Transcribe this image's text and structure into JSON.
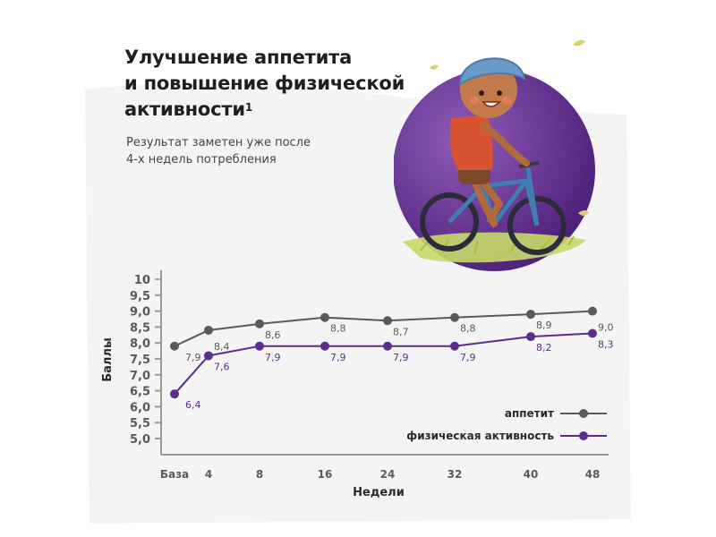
{
  "header": {
    "title_line1": "Улучшение аппетита",
    "title_line2": "и повышение физической",
    "title_line3": "активности",
    "title_sup": "1",
    "subtitle_line1": "Результат заметен уже после",
    "subtitle_line2": "4-х недель потребления"
  },
  "colors": {
    "appetite": "#5a5a5a",
    "activity": "#5b2d8e",
    "axis": "#9a9a9a",
    "circle_inner": "#7d4aa8",
    "circle_outer": "#4b1f78",
    "background_wave": "#f3f3f3"
  },
  "illustration": {
    "name": "child-on-bicycle-icon"
  },
  "chart_data": {
    "type": "line",
    "categories": [
      "База",
      "4",
      "8",
      "16",
      "24",
      "32",
      "40",
      "48"
    ],
    "xlabel": "Недели",
    "ylabel": "Баллы",
    "ylim": [
      5.0,
      10.0
    ],
    "yticks": [
      "10",
      "9,5",
      "9,0",
      "8,5",
      "8,0",
      "7,5",
      "7,0",
      "6,5",
      "6,0",
      "5,5",
      "5,0"
    ],
    "grid": false,
    "legend_position": "bottom-right",
    "series": [
      {
        "name": "аппетит",
        "values": [
          7.9,
          8.4,
          8.6,
          8.8,
          8.7,
          8.8,
          8.9,
          9.0
        ],
        "labels": [
          "7,9",
          "8,4",
          "8,6",
          "8,8",
          "8,7",
          "8,8",
          "8,9",
          "9,0"
        ],
        "color": "#5a5a5a"
      },
      {
        "name": "физическая активность",
        "values": [
          6.4,
          7.6,
          7.9,
          7.9,
          7.9,
          7.9,
          8.2,
          8.3
        ],
        "labels": [
          "6,4",
          "7,6",
          "7,9",
          "7,9",
          "7,9",
          "7,9",
          "8,2",
          "8,3"
        ],
        "color": "#5b2d8e"
      }
    ]
  }
}
